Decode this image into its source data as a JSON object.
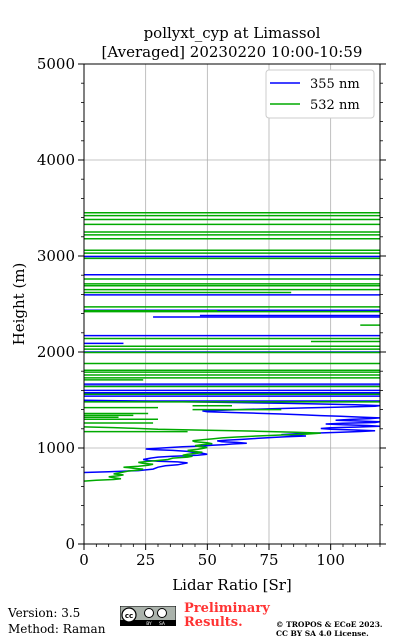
{
  "chart_data": {
    "type": "line",
    "title": "pollyxt_cyp at Limassol",
    "subtitle": "[Averaged] 20230220 10:00-10:59",
    "xlabel": "Lidar Ratio [Sr]",
    "ylabel": "Height (m)",
    "xlim": [
      0,
      120
    ],
    "ylim": [
      0,
      5000
    ],
    "xticks": [
      0,
      25,
      50,
      75,
      100
    ],
    "yticks": [
      0,
      1000,
      2000,
      3000,
      4000,
      5000
    ],
    "grid": true,
    "legend_position": "top-right",
    "series": [
      {
        "name": "355 nm",
        "color": "#0000ff",
        "points": [
          [
            0,
            745
          ],
          [
            10,
            752
          ],
          [
            22,
            765
          ],
          [
            28,
            780
          ],
          [
            30,
            800
          ],
          [
            33,
            815
          ],
          [
            38,
            825
          ],
          [
            40,
            835
          ],
          [
            42,
            845
          ],
          [
            38,
            855
          ],
          [
            30,
            862
          ],
          [
            26,
            870
          ],
          [
            24,
            880
          ],
          [
            27,
            895
          ],
          [
            30,
            905
          ],
          [
            35,
            912
          ],
          [
            40,
            918
          ],
          [
            46,
            925
          ],
          [
            50,
            935
          ],
          [
            48,
            945
          ],
          [
            44,
            955
          ],
          [
            42,
            965
          ],
          [
            36,
            975
          ],
          [
            28,
            983
          ],
          [
            25,
            990
          ],
          [
            30,
            998
          ],
          [
            35,
            1005
          ],
          [
            40,
            1012
          ],
          [
            47,
            1020
          ],
          [
            52,
            1028
          ],
          [
            57,
            1035
          ],
          [
            60,
            1042
          ],
          [
            66,
            1050
          ],
          [
            62,
            1058
          ],
          [
            56,
            1066
          ],
          [
            54,
            1074
          ],
          [
            58,
            1082
          ],
          [
            64,
            1090
          ],
          [
            70,
            1100
          ],
          [
            77,
            1110
          ],
          [
            82,
            1118
          ],
          [
            90,
            1125
          ],
          [
            84,
            1132
          ],
          [
            80,
            1140
          ],
          [
            86,
            1148
          ],
          [
            95,
            1156
          ],
          [
            104,
            1164
          ],
          [
            112,
            1172
          ],
          [
            118,
            1180
          ],
          [
            110,
            1188
          ],
          [
            100,
            1195
          ],
          [
            96,
            1203
          ],
          [
            100,
            1210
          ],
          [
            110,
            1218
          ],
          [
            120,
            1226
          ],
          [
            115,
            1234
          ],
          [
            105,
            1242
          ],
          [
            98,
            1250
          ],
          [
            105,
            1258
          ],
          [
            118,
            1266
          ],
          [
            120,
            1274
          ],
          [
            110,
            1282
          ],
          [
            102,
            1290
          ],
          [
            108,
            1298
          ],
          [
            116,
            1306
          ],
          [
            120,
            1314
          ],
          [
            112,
            1322
          ],
          [
            104,
            1330
          ],
          [
            96,
            1338
          ],
          [
            88,
            1346
          ],
          [
            80,
            1354
          ],
          [
            70,
            1362
          ],
          [
            60,
            1370
          ],
          [
            50,
            1378
          ],
          [
            48,
            1386
          ],
          [
            56,
            1394
          ],
          [
            66,
            1402
          ],
          [
            78,
            1410
          ],
          [
            90,
            1418
          ],
          [
            104,
            1426
          ],
          [
            118,
            1434
          ],
          [
            120,
            1442
          ],
          [
            110,
            1450
          ],
          [
            96,
            1458
          ],
          [
            80,
            1466
          ],
          [
            60,
            1474
          ],
          [
            40,
            1482
          ],
          [
            20,
            1490
          ],
          [
            0,
            1498
          ]
        ],
        "levels": [
          [
            0,
            1490,
            120
          ],
          [
            0,
            1540,
            120
          ],
          [
            0,
            1575,
            120
          ],
          [
            0,
            1600,
            120
          ],
          [
            0,
            1645,
            120
          ],
          [
            0,
            1665,
            120
          ],
          [
            0,
            2000,
            120
          ],
          [
            0,
            2090,
            16
          ],
          [
            0,
            2170,
            120
          ],
          [
            28,
            2365,
            120
          ],
          [
            47,
            2380,
            120
          ],
          [
            0,
            2435,
            120
          ],
          [
            0,
            2595,
            120
          ],
          [
            0,
            2805,
            120
          ],
          [
            0,
            2995,
            120
          ]
        ]
      },
      {
        "name": "532 nm",
        "color": "#00aa00",
        "points": [
          [
            0,
            655
          ],
          [
            5,
            665
          ],
          [
            12,
            672
          ],
          [
            15,
            680
          ],
          [
            12,
            690
          ],
          [
            10,
            700
          ],
          [
            14,
            710
          ],
          [
            16,
            720
          ],
          [
            12,
            730
          ],
          [
            15,
            745
          ],
          [
            18,
            760
          ],
          [
            22,
            770
          ],
          [
            24,
            780
          ],
          [
            20,
            790
          ],
          [
            16,
            800
          ],
          [
            22,
            810
          ],
          [
            26,
            820
          ],
          [
            28,
            830
          ],
          [
            24,
            840
          ],
          [
            22,
            850
          ],
          [
            26,
            860
          ],
          [
            30,
            870
          ],
          [
            34,
            880
          ],
          [
            36,
            895
          ],
          [
            42,
            905
          ],
          [
            44,
            915
          ],
          [
            40,
            925
          ],
          [
            42,
            935
          ],
          [
            46,
            945
          ],
          [
            48,
            955
          ],
          [
            44,
            965
          ],
          [
            42,
            975
          ],
          [
            46,
            985
          ],
          [
            48,
            995
          ],
          [
            50,
            1005
          ],
          [
            47,
            1015
          ],
          [
            45,
            1025
          ],
          [
            48,
            1035
          ],
          [
            52,
            1045
          ],
          [
            50,
            1055
          ],
          [
            45,
            1065
          ],
          [
            44,
            1075
          ],
          [
            48,
            1085
          ],
          [
            52,
            1095
          ],
          [
            56,
            1105
          ],
          [
            62,
            1115
          ],
          [
            70,
            1125
          ],
          [
            80,
            1135
          ],
          [
            90,
            1145
          ],
          [
            96,
            1155
          ],
          [
            86,
            1165
          ],
          [
            70,
            1175
          ],
          [
            50,
            1185
          ],
          [
            30,
            1195
          ],
          [
            20,
            1205
          ],
          [
            12,
            1212
          ],
          [
            0,
            1220
          ]
        ],
        "levels": [
          [
            0,
            1170,
            42
          ],
          [
            0,
            1260,
            28
          ],
          [
            0,
            1300,
            30
          ],
          [
            0,
            1320,
            14
          ],
          [
            0,
            1340,
            20
          ],
          [
            0,
            1360,
            26
          ],
          [
            44,
            1400,
            80
          ],
          [
            0,
            1420,
            30
          ],
          [
            44,
            1440,
            60
          ],
          [
            0,
            1480,
            120
          ],
          [
            0,
            1560,
            120
          ],
          [
            0,
            1640,
            120
          ],
          [
            0,
            1710,
            24
          ],
          [
            0,
            1730,
            120
          ],
          [
            0,
            1760,
            120
          ],
          [
            0,
            1790,
            120
          ],
          [
            0,
            1810,
            120
          ],
          [
            0,
            1880,
            120
          ],
          [
            0,
            1995,
            120
          ],
          [
            0,
            2030,
            120
          ],
          [
            0,
            2060,
            120
          ],
          [
            92,
            2110,
            120
          ],
          [
            0,
            2140,
            120
          ],
          [
            112,
            2280,
            120
          ],
          [
            0,
            2430,
            54
          ],
          [
            0,
            2420,
            120
          ],
          [
            0,
            2470,
            120
          ],
          [
            0,
            2620,
            84
          ],
          [
            0,
            2650,
            120
          ],
          [
            0,
            2690,
            120
          ],
          [
            0,
            2710,
            120
          ],
          [
            0,
            2760,
            120
          ],
          [
            0,
            2975,
            120
          ],
          [
            0,
            3030,
            120
          ],
          [
            0,
            3060,
            120
          ],
          [
            0,
            3180,
            120
          ],
          [
            0,
            3220,
            120
          ],
          [
            0,
            3250,
            120
          ],
          [
            0,
            3330,
            120
          ],
          [
            0,
            3380,
            120
          ],
          [
            0,
            3420,
            120
          ],
          [
            0,
            3450,
            120
          ]
        ]
      }
    ]
  },
  "footer": {
    "version": "Version: 3.5",
    "method": "Method: Raman",
    "preliminary_line1": "Preliminary",
    "preliminary_line2": "Results.",
    "copyright_line1": "© TROPOS & ECoE 2023.",
    "copyright_line2": "CC BY SA 4.0 License."
  },
  "logo": {
    "name": "cc-by-sa-logo",
    "text": "cc by sa"
  }
}
